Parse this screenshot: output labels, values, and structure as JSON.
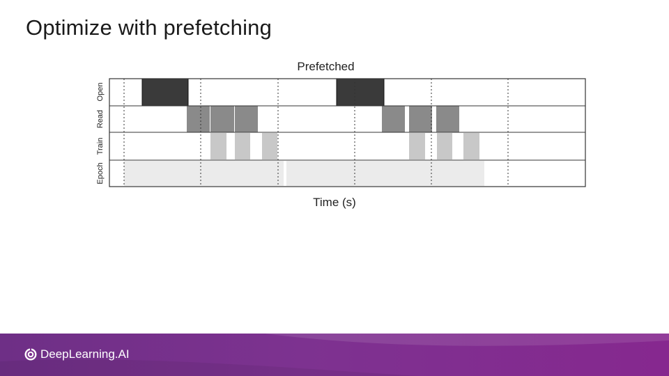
{
  "slide": {
    "title": "Optimize with prefetching"
  },
  "diagram": {
    "title": "Prefetched",
    "x_axis_label": "Time (s)",
    "rows": [
      {
        "label": "Open"
      },
      {
        "label": "Read"
      },
      {
        "label": "Train"
      },
      {
        "label": "Epoch"
      }
    ],
    "colors": {
      "open": "#3a3a3a",
      "read": "#8a8a8a",
      "train": "#c8c8c8",
      "epoch": "#ebebeb",
      "grid": "#333333"
    }
  },
  "footer": {
    "brand": "DeepLearning.AI",
    "brand_icon": "deeplearning-logo-icon"
  }
}
